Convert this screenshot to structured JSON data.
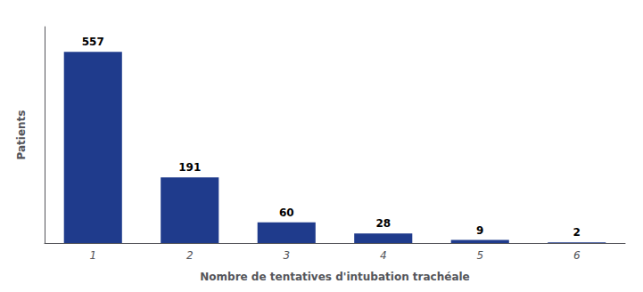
{
  "chart_data": {
    "type": "bar",
    "categories": [
      "1",
      "2",
      "3",
      "4",
      "5",
      "6"
    ],
    "values": [
      557,
      191,
      60,
      28,
      9,
      2
    ],
    "color": "#1f3b8c",
    "xlabel": "Nombre de tentatives d'intubation trachéale",
    "ylabel": "Patients",
    "ylim": [
      0,
      630
    ],
    "grid": false,
    "data_labels": true,
    "tick_labels": "x"
  }
}
